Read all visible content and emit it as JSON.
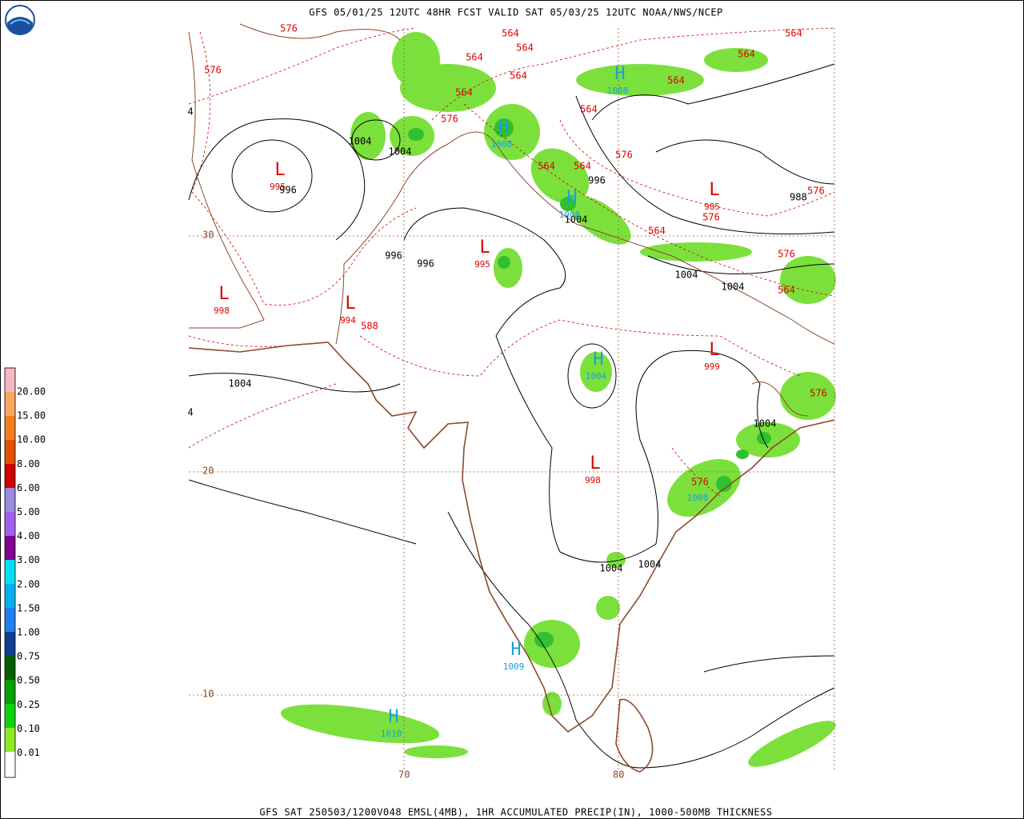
{
  "header": {
    "title": "GFS 05/01/25 12UTC 48HR FCST VALID SAT 05/03/25 12UTC NOAA/NWS/NCEP",
    "footer": "GFS SAT 250503/1200V048 EMSL(4MB), 1HR ACCUMULATED PRECIP(IN), 1000-500MB THICKNESS"
  },
  "legend": {
    "labels": [
      "20.00",
      "15.00",
      "10.00",
      "8.00",
      "6.00",
      "5.00",
      "4.00",
      "3.00",
      "2.00",
      "1.50",
      "1.00",
      "0.75",
      "0.50",
      "0.25",
      "0.10",
      "0.01"
    ]
  },
  "grid": {
    "latitudes": [
      "30",
      "20",
      "10"
    ],
    "longitudes": [
      "70",
      "80"
    ]
  },
  "centers": [
    {
      "letter": "L",
      "value": "995"
    },
    {
      "letter": "L",
      "value": "998"
    },
    {
      "letter": "L",
      "value": "994"
    },
    {
      "letter": "L",
      "value": "995"
    },
    {
      "letter": "L",
      "value": "985"
    },
    {
      "letter": "L",
      "value": "999"
    },
    {
      "letter": "L",
      "value": "998"
    },
    {
      "letter": "H",
      "value": "1008"
    },
    {
      "letter": "H",
      "value": "1008"
    },
    {
      "letter": "H",
      "value": "1008"
    },
    {
      "letter": "H",
      "value": "1004"
    },
    {
      "letter": "H",
      "value": "1009"
    },
    {
      "letter": "H",
      "value": "1010"
    },
    {
      "value": "1008"
    }
  ],
  "isobar_labels": [
    "1004",
    "1004",
    "996",
    "996",
    "1004",
    "988",
    "996",
    "996",
    "1004",
    "1004",
    "1004",
    "4",
    "1004",
    "1004",
    "1004",
    "4"
  ],
  "thickness_labels": [
    "576",
    "576",
    "564",
    "564",
    "564",
    "564",
    "564",
    "576",
    "564",
    "564",
    "564",
    "576",
    "564",
    "564",
    "564",
    "576",
    "576",
    "564",
    "576",
    "564",
    "588",
    "576",
    "576"
  ]
}
